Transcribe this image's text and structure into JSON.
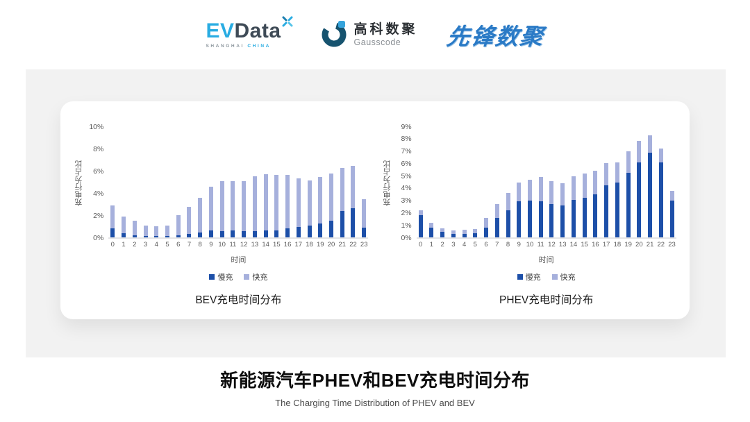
{
  "header": {
    "evdata": {
      "ev": "EV",
      "data": "Data",
      "sub_left": "SHANGHAI",
      "sub_right": "CHINA"
    },
    "gausscode": {
      "cn": "高科数聚",
      "en": "Gausscode"
    },
    "pioneer": "先锋数聚"
  },
  "colors": {
    "slow_charge": "#1D4FA8",
    "fast_charge": "#A6B0DC",
    "axis_text": "#595959",
    "panel_bg": "#F2F2F2",
    "logo_blue": "#29ACE2",
    "pioneer_blue": "#2A7AC6"
  },
  "chart_data": [
    {
      "type": "bar",
      "stacked": true,
      "title": "BEV充电时间分布",
      "xlabel": "时间",
      "ylabel": "充电行为占比",
      "ymax": 10,
      "ylim": [
        0,
        10
      ],
      "yticks": [
        0,
        2,
        4,
        6,
        8,
        10
      ],
      "ytick_suffix": "%",
      "grid": false,
      "legend_position": "bottom",
      "categories": [
        0,
        1,
        2,
        3,
        4,
        5,
        6,
        7,
        8,
        9,
        10,
        11,
        12,
        13,
        14,
        15,
        16,
        17,
        18,
        19,
        20,
        21,
        22,
        23
      ],
      "series": [
        {
          "name": "慢充",
          "color": "#1D4FA8",
          "values": [
            0.8,
            0.35,
            0.2,
            0.1,
            0.1,
            0.1,
            0.2,
            0.3,
            0.45,
            0.65,
            0.6,
            0.65,
            0.6,
            0.6,
            0.65,
            0.65,
            0.8,
            0.95,
            1.05,
            1.25,
            1.55,
            2.4,
            2.65,
            0.9
          ]
        },
        {
          "name": "快充",
          "color": "#A6B0DC",
          "values": [
            2.1,
            1.55,
            1.3,
            1.0,
            0.9,
            1.0,
            1.8,
            2.5,
            3.15,
            3.95,
            4.5,
            4.5,
            4.5,
            5.0,
            5.1,
            5.05,
            4.9,
            4.45,
            4.15,
            4.25,
            4.3,
            3.9,
            3.85,
            2.6
          ]
        }
      ]
    },
    {
      "type": "bar",
      "stacked": true,
      "title": "PHEV充电时间分布",
      "xlabel": "时间",
      "ylabel": "充电行为占比",
      "ymax": 9,
      "ylim": [
        0,
        9
      ],
      "yticks": [
        0,
        1,
        2,
        3,
        4,
        5,
        6,
        7,
        8,
        9
      ],
      "ytick_suffix": "%",
      "grid": false,
      "legend_position": "bottom",
      "categories": [
        0,
        1,
        2,
        3,
        4,
        5,
        6,
        7,
        8,
        9,
        10,
        11,
        12,
        13,
        14,
        15,
        16,
        17,
        18,
        19,
        20,
        21,
        22,
        23
      ],
      "series": [
        {
          "name": "慢充",
          "color": "#1D4FA8",
          "values": [
            1.8,
            0.8,
            0.45,
            0.3,
            0.3,
            0.35,
            0.8,
            1.6,
            2.25,
            2.95,
            3.0,
            2.95,
            2.75,
            2.6,
            3.05,
            3.25,
            3.55,
            4.3,
            4.5,
            5.3,
            6.15,
            6.95,
            6.15,
            3.0
          ]
        },
        {
          "name": "快充",
          "color": "#A6B0DC",
          "values": [
            0.4,
            0.4,
            0.3,
            0.25,
            0.3,
            0.35,
            0.8,
            1.15,
            1.4,
            1.55,
            1.75,
            2.0,
            1.85,
            1.85,
            1.95,
            2.0,
            1.9,
            1.8,
            1.65,
            1.75,
            1.75,
            1.45,
            1.15,
            0.8
          ]
        }
      ]
    }
  ],
  "footer": {
    "title": "新能源汽车PHEV和BEV充电时间分布",
    "subtitle": "The Charging Time Distribution of PHEV and BEV"
  }
}
